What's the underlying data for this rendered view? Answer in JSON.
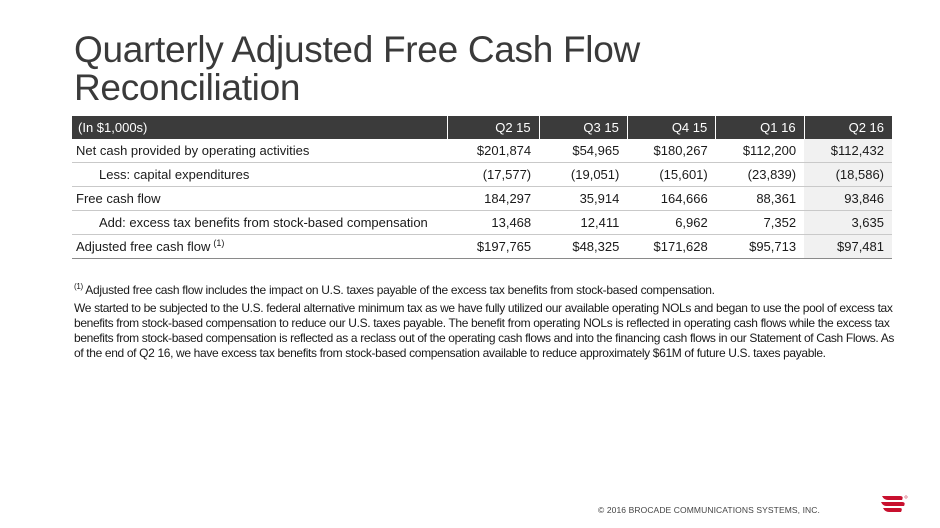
{
  "title": "Quarterly Adjusted Free Cash Flow Reconciliation",
  "table": {
    "headers": [
      "(In $1,000s)",
      "Q2 15",
      "Q3 15",
      "Q4 15",
      "Q1 16",
      "Q2 16"
    ],
    "rows": [
      {
        "label": "Net cash provided by operating activities",
        "values": [
          "$201,874",
          "$54,965",
          "$180,267",
          "$112,200",
          "$112,432"
        ]
      },
      {
        "label": "Less: capital expenditures",
        "values": [
          "(17,577)",
          "(19,051)",
          "(15,601)",
          "(23,839)",
          "(18,586)"
        ]
      },
      {
        "label": "Free cash flow",
        "values": [
          "184,297",
          "35,914",
          "164,666",
          "88,361",
          "93,846"
        ]
      },
      {
        "label": "Add: excess tax benefits from stock-based compensation",
        "values": [
          "13,468",
          "12,411",
          "6,962",
          "7,352",
          "3,635"
        ]
      },
      {
        "label": "Adjusted free cash flow",
        "label_sup": "(1)",
        "values": [
          "$197,765",
          "$48,325",
          "$171,628",
          "$95,713",
          "$97,481"
        ]
      }
    ]
  },
  "footnote": {
    "marker": "(1)",
    "text": "Adjusted free cash flow includes the impact on U.S. taxes payable of the excess tax benefits from stock-based compensation."
  },
  "paragraph": "We started to be subjected to the U.S. federal alternative minimum tax as we have fully utilized our available operating NOLs and began to use the pool of excess tax benefits from stock-based compensation to reduce our U.S. taxes payable. The benefit from operating NOLs is reflected in operating cash flows while the excess tax benefits from stock-based compensation is reflected as a reclass out of the operating cash flows and into the financing cash flows in our Statement of Cash Flows. As of the end of Q2 16, we have excess tax benefits from stock-based compensation available to reduce approximately $61M of future U.S. taxes payable.",
  "copyright": "© 2016 BROCADE COMMUNICATIONS SYSTEMS, INC.",
  "colors": {
    "header_bg": "#3b3b3b",
    "logo_red": "#c8102e",
    "last_col_bg": "#f1f1f1"
  },
  "icons": {
    "logo": "brocade-wings-logo"
  }
}
